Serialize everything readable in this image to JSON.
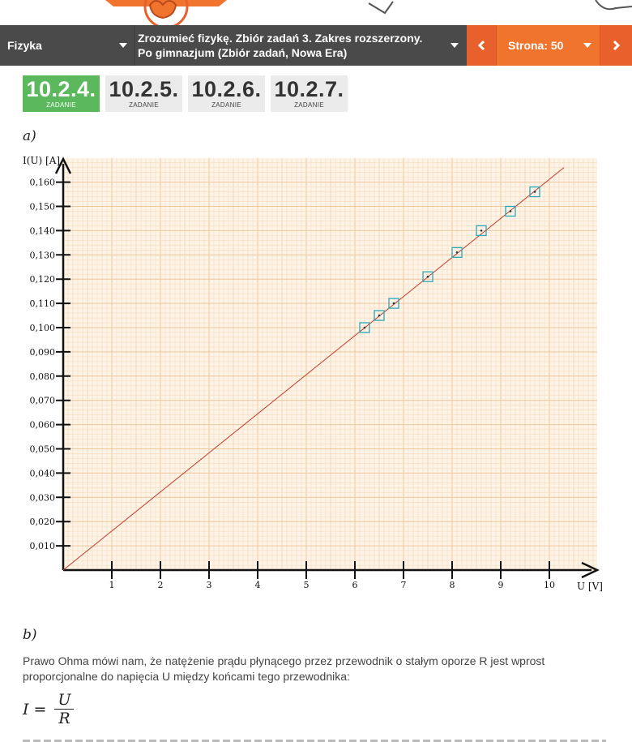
{
  "nav": {
    "subject": "Fizyka",
    "book": "Zrozumieć fizykę. Zbiór zadań 3. Zakres rozszerzony. Po gimnazjum (Zbiór zadań, Nowa Era)",
    "page": "Strona: 50"
  },
  "tabs": [
    {
      "num": "10.2.4.",
      "label": "ZADANIE",
      "active": true
    },
    {
      "num": "10.2.5.",
      "label": "ZADANIE",
      "active": false
    },
    {
      "num": "10.2.6.",
      "label": "ZADANIE",
      "active": false
    },
    {
      "num": "10.2.7.",
      "label": "ZADANIE",
      "active": false
    }
  ],
  "part_a": "a)",
  "part_b": "b)",
  "chart_data": {
    "type": "scatter",
    "ylabel": "I(U) [A]",
    "xlabel": "U [V]",
    "xlim": [
      0,
      10.5
    ],
    "ylim": [
      0,
      0.168
    ],
    "x_ticks": [
      "1",
      "2",
      "3",
      "4",
      "5",
      "6",
      "7",
      "8",
      "9",
      "10"
    ],
    "y_ticks": [
      "0,010",
      "0,020",
      "0,030",
      "0,040",
      "0,050",
      "0,060",
      "0,070",
      "0,080",
      "0,090",
      "0,100",
      "0,110",
      "0,120",
      "0,130",
      "0,140",
      "0,150",
      "0,160"
    ],
    "points": [
      {
        "x": 6.2,
        "y": 0.1
      },
      {
        "x": 6.5,
        "y": 0.105
      },
      {
        "x": 6.8,
        "y": 0.11
      },
      {
        "x": 7.5,
        "y": 0.121
      },
      {
        "x": 8.1,
        "y": 0.131
      },
      {
        "x": 8.6,
        "y": 0.14
      },
      {
        "x": 9.2,
        "y": 0.148
      },
      {
        "x": 9.7,
        "y": 0.156
      }
    ],
    "fit_line": {
      "x": [
        0,
        10.3
      ],
      "y": [
        0,
        0.166
      ]
    },
    "grid": true,
    "colors": {
      "grid_fine": "#f7dcbd",
      "grid_major": "#efc79b",
      "fit_line": "#c0392b",
      "marker": "#2aa7b8",
      "background": "#fdf3e6"
    }
  },
  "text": {
    "paragraph": "Prawo Ohma mówi nam, że natężenie prądu płynącego przez przewodnik o stałym oporze R jest wprost proporcjonalne do napięcia U między końcami tego przewodnika:",
    "formula_lhs": "I =",
    "formula_num": "U",
    "formula_den": "R"
  },
  "colors": {
    "nav_dark": "#4a4a4a",
    "nav_orange": "#f0742e",
    "tab_active": "#5cb85c",
    "tab_inactive": "#ebebeb"
  }
}
